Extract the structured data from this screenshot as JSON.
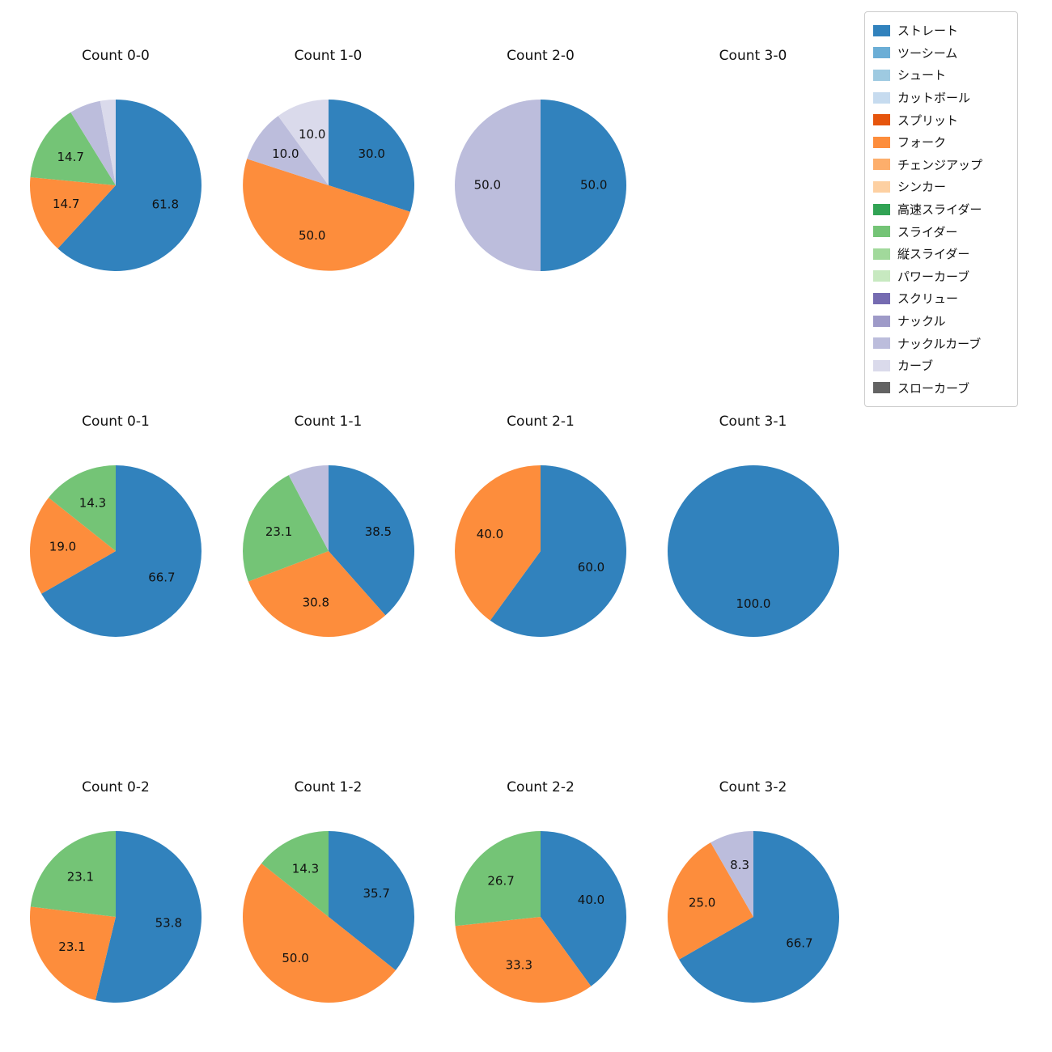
{
  "figure": {
    "background": "#ffffff"
  },
  "legend": {
    "items": [
      {
        "label": "ストレート",
        "color": "#3182bd"
      },
      {
        "label": "ツーシーム",
        "color": "#6baed6"
      },
      {
        "label": "シュート",
        "color": "#9ecae1"
      },
      {
        "label": "カットボール",
        "color": "#c6dbef"
      },
      {
        "label": "スプリット",
        "color": "#e6550d"
      },
      {
        "label": "フォーク",
        "color": "#fd8d3c"
      },
      {
        "label": "チェンジアップ",
        "color": "#fdae6b"
      },
      {
        "label": "シンカー",
        "color": "#fdd0a2"
      },
      {
        "label": "高速スライダー",
        "color": "#31a354"
      },
      {
        "label": "スライダー",
        "color": "#74c476"
      },
      {
        "label": "縦スライダー",
        "color": "#a1d99b"
      },
      {
        "label": "パワーカーブ",
        "color": "#c7e9c0"
      },
      {
        "label": "スクリュー",
        "color": "#756bb1"
      },
      {
        "label": "ナックル",
        "color": "#9e9ac8"
      },
      {
        "label": "ナックルカーブ",
        "color": "#bcbddc"
      },
      {
        "label": "カーブ",
        "color": "#dadaeb"
      },
      {
        "label": "スローカーブ",
        "color": "#636363"
      }
    ]
  },
  "chart_data": [
    {
      "type": "pie",
      "title": "Count 0-0",
      "slices": [
        {
          "label": "ストレート",
          "value": 61.8,
          "color": "#3182bd",
          "pct_label": "61.8"
        },
        {
          "label": "フォーク",
          "value": 14.7,
          "color": "#fd8d3c",
          "pct_label": "14.7"
        },
        {
          "label": "スライダー",
          "value": 14.7,
          "color": "#74c476",
          "pct_label": "14.7"
        },
        {
          "label": "ナックルカーブ",
          "value": 5.9,
          "color": "#bcbddc",
          "pct_label": ""
        },
        {
          "label": "カーブ",
          "value": 2.9,
          "color": "#dadaeb",
          "pct_label": ""
        }
      ]
    },
    {
      "type": "pie",
      "title": "Count 1-0",
      "slices": [
        {
          "label": "ストレート",
          "value": 30.0,
          "color": "#3182bd",
          "pct_label": "30.0"
        },
        {
          "label": "フォーク",
          "value": 50.0,
          "color": "#fd8d3c",
          "pct_label": "50.0"
        },
        {
          "label": "ナックルカーブ",
          "value": 10.0,
          "color": "#bcbddc",
          "pct_label": "10.0"
        },
        {
          "label": "カーブ",
          "value": 10.0,
          "color": "#dadaeb",
          "pct_label": "10.0"
        }
      ]
    },
    {
      "type": "pie",
      "title": "Count 2-0",
      "slices": [
        {
          "label": "ストレート",
          "value": 50.0,
          "color": "#3182bd",
          "pct_label": "50.0"
        },
        {
          "label": "ナックルカーブ",
          "value": 50.0,
          "color": "#bcbddc",
          "pct_label": "50.0"
        }
      ]
    },
    {
      "type": "pie",
      "title": "Count 3-0",
      "slices": []
    },
    {
      "type": "pie",
      "title": "Count 0-1",
      "slices": [
        {
          "label": "ストレート",
          "value": 66.7,
          "color": "#3182bd",
          "pct_label": "66.7"
        },
        {
          "label": "フォーク",
          "value": 19.0,
          "color": "#fd8d3c",
          "pct_label": "19.0"
        },
        {
          "label": "スライダー",
          "value": 14.3,
          "color": "#74c476",
          "pct_label": "14.3"
        }
      ]
    },
    {
      "type": "pie",
      "title": "Count 1-1",
      "slices": [
        {
          "label": "ストレート",
          "value": 38.5,
          "color": "#3182bd",
          "pct_label": "38.5"
        },
        {
          "label": "フォーク",
          "value": 30.8,
          "color": "#fd8d3c",
          "pct_label": "30.8"
        },
        {
          "label": "スライダー",
          "value": 23.1,
          "color": "#74c476",
          "pct_label": "23.1"
        },
        {
          "label": "ナックルカーブ",
          "value": 7.7,
          "color": "#bcbddc",
          "pct_label": ""
        }
      ]
    },
    {
      "type": "pie",
      "title": "Count 2-1",
      "slices": [
        {
          "label": "ストレート",
          "value": 60.0,
          "color": "#3182bd",
          "pct_label": "60.0"
        },
        {
          "label": "フォーク",
          "value": 40.0,
          "color": "#fd8d3c",
          "pct_label": "40.0"
        }
      ]
    },
    {
      "type": "pie",
      "title": "Count 3-1",
      "slices": [
        {
          "label": "ストレート",
          "value": 100.0,
          "color": "#3182bd",
          "pct_label": "100.0"
        }
      ]
    },
    {
      "type": "pie",
      "title": "Count 0-2",
      "slices": [
        {
          "label": "ストレート",
          "value": 53.8,
          "color": "#3182bd",
          "pct_label": "53.8"
        },
        {
          "label": "フォーク",
          "value": 23.1,
          "color": "#fd8d3c",
          "pct_label": "23.1"
        },
        {
          "label": "スライダー",
          "value": 23.1,
          "color": "#74c476",
          "pct_label": "23.1"
        }
      ]
    },
    {
      "type": "pie",
      "title": "Count 1-2",
      "slices": [
        {
          "label": "ストレート",
          "value": 35.7,
          "color": "#3182bd",
          "pct_label": "35.7"
        },
        {
          "label": "フォーク",
          "value": 50.0,
          "color": "#fd8d3c",
          "pct_label": "50.0"
        },
        {
          "label": "スライダー",
          "value": 14.3,
          "color": "#74c476",
          "pct_label": "14.3"
        }
      ]
    },
    {
      "type": "pie",
      "title": "Count 2-2",
      "slices": [
        {
          "label": "ストレート",
          "value": 40.0,
          "color": "#3182bd",
          "pct_label": "40.0"
        },
        {
          "label": "フォーク",
          "value": 33.3,
          "color": "#fd8d3c",
          "pct_label": "33.3"
        },
        {
          "label": "スライダー",
          "value": 26.7,
          "color": "#74c476",
          "pct_label": "26.7"
        }
      ]
    },
    {
      "type": "pie",
      "title": "Count 3-2",
      "slices": [
        {
          "label": "ストレート",
          "value": 66.7,
          "color": "#3182bd",
          "pct_label": "66.7"
        },
        {
          "label": "フォーク",
          "value": 25.0,
          "color": "#fd8d3c",
          "pct_label": "25.0"
        },
        {
          "label": "ナックルカーブ",
          "value": 8.3,
          "color": "#bcbddc",
          "pct_label": "8.3"
        }
      ]
    }
  ]
}
